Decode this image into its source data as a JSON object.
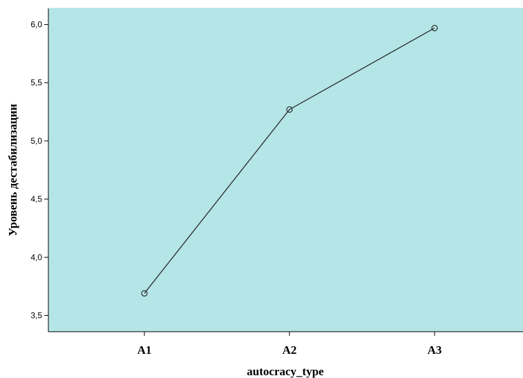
{
  "colors": {
    "plot_background": "#b4e5e7",
    "line": "#2b2b2b",
    "axis": "#000000"
  },
  "chart_data": {
    "type": "line",
    "categories": [
      "A1",
      "A2",
      "A3"
    ],
    "series": [
      {
        "values": [
          3.69,
          5.27,
          5.97
        ]
      }
    ],
    "title": "",
    "xlabel": "autocracy_type",
    "ylabel": "Уровень дестабилизации",
    "ylim": [
      3.36,
      6.14
    ],
    "yticks": [
      3.5,
      4.0,
      4.5,
      5.0,
      5.5,
      6.0
    ],
    "ytick_labels": [
      "3,5",
      "4,0",
      "4,5",
      "5,0",
      "5,5",
      "6,0"
    ],
    "grid": false,
    "legend": "none",
    "marker": "open-circle"
  }
}
